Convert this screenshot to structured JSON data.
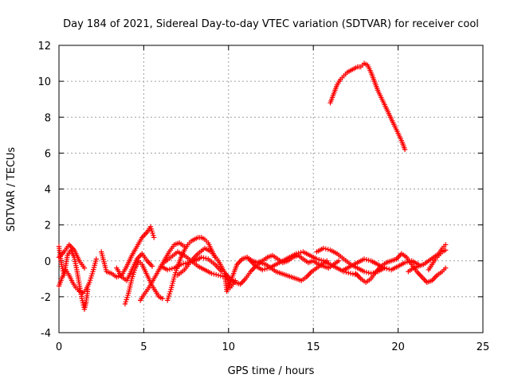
{
  "chart_data": {
    "type": "scatter",
    "title": "Day 184 of 2021, Sidereal Day-to-day VTEC variation (SDTVAR) for receiver cool",
    "xlabel": "GPS time / hours",
    "ylabel": "SDTVAR / TECUs",
    "xlim": [
      0,
      25
    ],
    "ylim": [
      -4,
      12
    ],
    "xticks": [
      "0",
      "5",
      "10",
      "15",
      "20",
      "25"
    ],
    "yticks": [
      "-4",
      "-2",
      "0",
      "2",
      "4",
      "6",
      "8",
      "10",
      "12"
    ],
    "grid": true,
    "marker": "plus",
    "color": "#ff0000",
    "series": [
      {
        "name": "SDTVAR",
        "points": [
          [
            0.0,
            0.8
          ],
          [
            0.15,
            -0.2
          ],
          [
            0.3,
            -0.8
          ],
          [
            0.5,
            0.3
          ],
          [
            0.7,
            0.6
          ],
          [
            0.9,
            0.2
          ],
          [
            1.05,
            -0.5
          ],
          [
            1.2,
            -1.3
          ],
          [
            1.35,
            -2.1
          ],
          [
            1.5,
            -2.7
          ],
          [
            1.6,
            -2.3
          ],
          [
            1.7,
            -1.6
          ],
          [
            0.0,
            -1.4
          ],
          [
            0.2,
            -0.9
          ],
          [
            0.4,
            -0.5
          ],
          [
            0.6,
            -0.8
          ],
          [
            0.8,
            -1.2
          ],
          [
            1.0,
            -1.5
          ],
          [
            1.2,
            -1.7
          ],
          [
            1.4,
            -1.8
          ],
          [
            1.6,
            -1.6
          ],
          [
            1.8,
            -1.2
          ],
          [
            2.0,
            -0.6
          ],
          [
            2.2,
            0.1
          ],
          [
            0.0,
            0.2
          ],
          [
            0.3,
            0.5
          ],
          [
            0.6,
            0.9
          ],
          [
            0.9,
            0.6
          ],
          [
            1.2,
            0.0
          ],
          [
            1.5,
            -0.4
          ],
          [
            2.5,
            0.5
          ],
          [
            2.8,
            -0.6
          ],
          [
            3.1,
            -0.7
          ],
          [
            3.4,
            -0.9
          ],
          [
            3.7,
            -0.8
          ],
          [
            4.0,
            -0.3
          ],
          [
            4.3,
            0.3
          ],
          [
            4.6,
            0.8
          ],
          [
            4.9,
            1.3
          ],
          [
            5.2,
            1.6
          ],
          [
            5.4,
            1.9
          ],
          [
            5.6,
            1.3
          ],
          [
            3.4,
            -0.4
          ],
          [
            3.7,
            -0.9
          ],
          [
            4.0,
            -1.1
          ],
          [
            4.3,
            -0.5
          ],
          [
            4.6,
            0.1
          ],
          [
            4.9,
            0.4
          ],
          [
            5.2,
            0.0
          ],
          [
            5.5,
            -0.3
          ],
          [
            3.9,
            -2.4
          ],
          [
            4.1,
            -1.8
          ],
          [
            4.3,
            -1.0
          ],
          [
            4.5,
            -0.4
          ],
          [
            4.7,
            0.0
          ],
          [
            4.9,
            -0.2
          ],
          [
            5.1,
            -0.6
          ],
          [
            5.3,
            -1.0
          ],
          [
            5.5,
            -1.4
          ],
          [
            5.7,
            -1.7
          ],
          [
            5.9,
            -2.0
          ],
          [
            6.1,
            -2.1
          ],
          [
            4.8,
            -2.2
          ],
          [
            5.0,
            -1.9
          ],
          [
            5.3,
            -1.5
          ],
          [
            5.6,
            -1.0
          ],
          [
            5.9,
            -0.5
          ],
          [
            6.2,
            0.0
          ],
          [
            6.5,
            0.5
          ],
          [
            6.8,
            0.9
          ],
          [
            7.1,
            1.0
          ],
          [
            7.4,
            0.8
          ],
          [
            6.4,
            -2.2
          ],
          [
            6.6,
            -1.6
          ],
          [
            6.8,
            -0.9
          ],
          [
            7.0,
            -0.3
          ],
          [
            7.2,
            0.2
          ],
          [
            7.4,
            0.6
          ],
          [
            7.6,
            0.9
          ],
          [
            7.8,
            1.1
          ],
          [
            8.0,
            1.2
          ],
          [
            8.2,
            1.3
          ],
          [
            8.4,
            1.3
          ],
          [
            8.6,
            1.2
          ],
          [
            8.8,
            1.0
          ],
          [
            9.0,
            0.6
          ],
          [
            9.2,
            0.2
          ],
          [
            6.0,
            -0.3
          ],
          [
            6.4,
            -0.5
          ],
          [
            6.8,
            -0.4
          ],
          [
            7.2,
            -0.2
          ],
          [
            7.6,
            -0.1
          ],
          [
            8.0,
            0.0
          ],
          [
            8.4,
            0.2
          ],
          [
            8.8,
            0.1
          ],
          [
            9.2,
            -0.2
          ],
          [
            9.6,
            -0.6
          ],
          [
            7.0,
            -0.8
          ],
          [
            7.4,
            -0.5
          ],
          [
            7.8,
            0.0
          ],
          [
            8.2,
            0.4
          ],
          [
            8.6,
            0.7
          ],
          [
            9.0,
            0.5
          ],
          [
            9.4,
            0.0
          ],
          [
            9.8,
            -0.7
          ],
          [
            10.1,
            -1.5
          ],
          [
            10.4,
            -1.1
          ],
          [
            6.2,
            -0.1
          ],
          [
            6.6,
            0.2
          ],
          [
            7.0,
            0.5
          ],
          [
            7.4,
            0.3
          ],
          [
            7.8,
            0.0
          ],
          [
            8.2,
            -0.3
          ],
          [
            8.6,
            -0.5
          ],
          [
            9.0,
            -0.7
          ],
          [
            9.4,
            -0.8
          ],
          [
            9.8,
            -0.9
          ],
          [
            9.9,
            -1.7
          ],
          [
            10.1,
            -1.2
          ],
          [
            10.3,
            -0.7
          ],
          [
            10.5,
            -0.2
          ],
          [
            10.8,
            0.1
          ],
          [
            11.1,
            0.2
          ],
          [
            11.4,
            0.0
          ],
          [
            11.7,
            -0.1
          ],
          [
            12.0,
            0.0
          ],
          [
            12.3,
            0.2
          ],
          [
            12.6,
            0.3
          ],
          [
            12.9,
            0.1
          ],
          [
            13.2,
            -0.1
          ],
          [
            13.5,
            0.0
          ],
          [
            13.8,
            0.2
          ],
          [
            14.1,
            0.3
          ],
          [
            14.4,
            0.1
          ],
          [
            14.7,
            -0.1
          ],
          [
            15.0,
            0.0
          ],
          [
            15.3,
            -0.2
          ],
          [
            15.6,
            -0.3
          ],
          [
            15.9,
            -0.4
          ],
          [
            16.2,
            -0.2
          ],
          [
            16.5,
            0.0
          ],
          [
            9.8,
            -0.7
          ],
          [
            10.1,
            -1.0
          ],
          [
            10.4,
            -1.2
          ],
          [
            10.7,
            -1.3
          ],
          [
            11.0,
            -1.0
          ],
          [
            11.3,
            -0.6
          ],
          [
            11.6,
            -0.3
          ],
          [
            11.9,
            -0.1
          ],
          [
            12.2,
            -0.2
          ],
          [
            12.5,
            -0.4
          ],
          [
            12.8,
            -0.6
          ],
          [
            13.1,
            -0.7
          ],
          [
            13.4,
            -0.8
          ],
          [
            13.7,
            -0.9
          ],
          [
            14.0,
            -1.0
          ],
          [
            14.3,
            -1.1
          ],
          [
            14.6,
            -0.9
          ],
          [
            14.9,
            -0.6
          ],
          [
            15.2,
            -0.4
          ],
          [
            15.5,
            -0.2
          ],
          [
            15.8,
            0.0
          ],
          [
            11.2,
            0.1
          ],
          [
            11.6,
            -0.3
          ],
          [
            12.0,
            -0.5
          ],
          [
            12.4,
            -0.4
          ],
          [
            12.8,
            -0.2
          ],
          [
            13.2,
            0.0
          ],
          [
            13.6,
            0.2
          ],
          [
            14.0,
            0.4
          ],
          [
            14.4,
            0.5
          ],
          [
            14.8,
            0.3
          ],
          [
            15.2,
            0.1
          ],
          [
            15.6,
            0.0
          ],
          [
            16.0,
            -0.2
          ],
          [
            16.4,
            -0.4
          ],
          [
            16.8,
            -0.6
          ],
          [
            17.2,
            -0.7
          ],
          [
            17.6,
            -0.8
          ],
          [
            15.2,
            0.5
          ],
          [
            15.6,
            0.7
          ],
          [
            16.0,
            0.6
          ],
          [
            16.4,
            0.4
          ],
          [
            16.8,
            0.1
          ],
          [
            17.2,
            -0.2
          ],
          [
            17.6,
            -0.4
          ],
          [
            18.0,
            -0.6
          ],
          [
            18.4,
            -0.7
          ],
          [
            18.8,
            -0.6
          ],
          [
            19.2,
            -0.4
          ],
          [
            16.8,
            -0.5
          ],
          [
            17.2,
            -0.3
          ],
          [
            17.6,
            -0.1
          ],
          [
            18.0,
            0.1
          ],
          [
            18.4,
            0.0
          ],
          [
            18.8,
            -0.2
          ],
          [
            19.2,
            -0.4
          ],
          [
            19.6,
            -0.5
          ],
          [
            20.0,
            -0.3
          ],
          [
            20.4,
            -0.1
          ],
          [
            20.8,
            0.0
          ],
          [
            21.2,
            -0.2
          ],
          [
            17.5,
            -0.7
          ],
          [
            17.8,
            -1.0
          ],
          [
            18.1,
            -1.2
          ],
          [
            18.4,
            -1.0
          ],
          [
            18.7,
            -0.6
          ],
          [
            19.0,
            -0.3
          ],
          [
            19.3,
            -0.1
          ],
          [
            19.6,
            0.0
          ],
          [
            19.9,
            0.1
          ],
          [
            20.2,
            0.4
          ],
          [
            20.5,
            0.2
          ],
          [
            20.8,
            -0.2
          ],
          [
            21.1,
            -0.6
          ],
          [
            21.4,
            -0.9
          ],
          [
            21.7,
            -1.2
          ],
          [
            22.0,
            -1.1
          ],
          [
            22.3,
            -0.8
          ],
          [
            22.6,
            -0.6
          ],
          [
            22.8,
            -0.4
          ],
          [
            20.6,
            -0.6
          ],
          [
            20.9,
            -0.4
          ],
          [
            21.2,
            -0.3
          ],
          [
            21.5,
            -0.2
          ],
          [
            21.8,
            0.0
          ],
          [
            22.1,
            0.2
          ],
          [
            22.4,
            0.4
          ],
          [
            22.6,
            0.7
          ],
          [
            22.8,
            0.9
          ],
          [
            21.8,
            -0.5
          ],
          [
            22.0,
            -0.2
          ],
          [
            22.2,
            0.1
          ],
          [
            22.4,
            0.3
          ],
          [
            22.6,
            0.5
          ],
          [
            22.8,
            0.6
          ],
          [
            16.0,
            8.8
          ],
          [
            16.2,
            9.3
          ],
          [
            16.4,
            9.8
          ],
          [
            16.6,
            10.1
          ],
          [
            16.8,
            10.3
          ],
          [
            17.0,
            10.5
          ],
          [
            17.2,
            10.6
          ],
          [
            17.4,
            10.7
          ],
          [
            17.6,
            10.8
          ],
          [
            17.8,
            10.8
          ],
          [
            18.0,
            11.0
          ],
          [
            18.2,
            10.9
          ],
          [
            18.4,
            10.5
          ],
          [
            18.6,
            10.0
          ],
          [
            18.8,
            9.5
          ],
          [
            19.0,
            9.1
          ],
          [
            19.2,
            8.7
          ],
          [
            19.4,
            8.3
          ],
          [
            19.6,
            7.9
          ],
          [
            19.8,
            7.5
          ],
          [
            20.0,
            7.1
          ],
          [
            20.2,
            6.7
          ],
          [
            20.4,
            6.2
          ]
        ]
      }
    ]
  }
}
